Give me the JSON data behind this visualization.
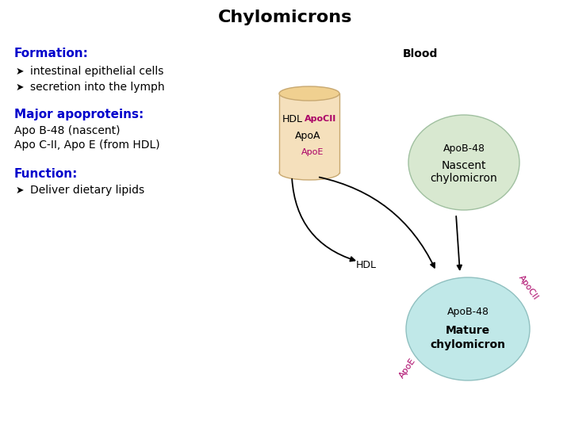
{
  "title": "Chylomicrons",
  "title_color": "#000000",
  "title_fontsize": 16,
  "bg_color": "#ffffff",
  "text_blue": "#0000cc",
  "text_black": "#000000",
  "text_magenta": "#aa0066",
  "section_formation": "Formation:",
  "section_apo": "Major apoproteins:",
  "apo1": "Apo B-48 (nascent)",
  "apo2": "Apo C-II, Apo E (from HDL)",
  "section_function": "Function:",
  "blood_label": "Blood",
  "hdl_shape_color": "#f5e0bc",
  "hdl_edge_color": "#c8a870",
  "hdl_top_color": "#f0d090",
  "hdl_text": "HDL",
  "hdl_apocii": "ApoCII",
  "hdl_apoa": "ApoA",
  "hdl_apoe": "ApoE",
  "nascent_color": "#d8e8d0",
  "nascent_edge_color": "#a0c0a0",
  "nascent_apob": "ApoB-48",
  "nascent_label1": "Nascent",
  "nascent_label2": "chylomicron",
  "mature_color": "#c0e8e8",
  "mature_edge_color": "#90c0c0",
  "mature_apob": "ApoB-48",
  "mature_apocii": "ApoCII",
  "mature_apoe": "ApoE",
  "mature_label1": "Mature",
  "mature_label2": "chylomicron",
  "hdl_lower": "HDL"
}
